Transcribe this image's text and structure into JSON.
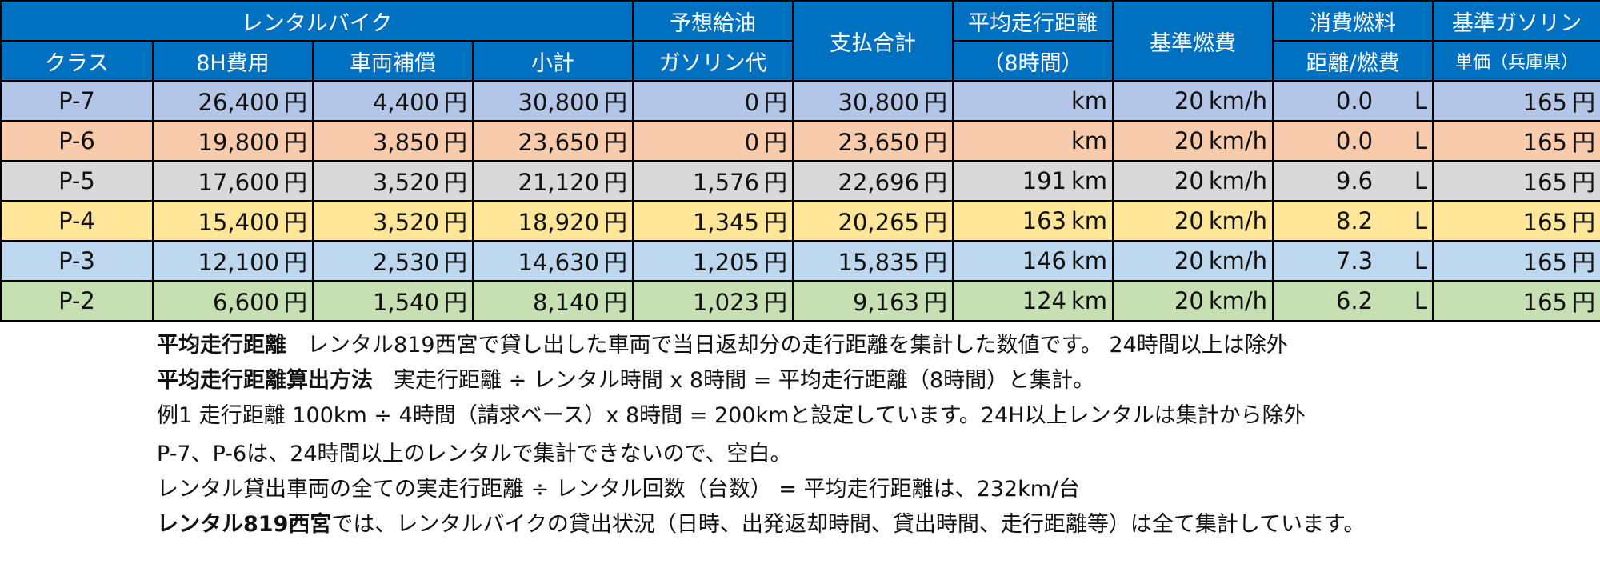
{
  "header": {
    "top": {
      "rental_bike": "レンタルバイク",
      "fuel_forecast": "予想給油",
      "total_payment": "支払合計",
      "avg_distance": "平均走行距離",
      "base_fuel_economy": "基準燃費",
      "fuel_consumed": "消費燃料",
      "base_gas": "基準ガソリン"
    },
    "sub": {
      "class": "クラス",
      "cost_8h": "8H費用",
      "vehicle_comp": "車両補償",
      "subtotal": "小計",
      "gas_cost": "ガソリン代",
      "avg_distance_sub": "（8時間）",
      "distance_per_economy": "距離/燃費",
      "unit_price": "単価（兵庫県）"
    }
  },
  "units": {
    "yen": "円",
    "km": "km",
    "kmh": "km/h",
    "liter": "L"
  },
  "rows": [
    {
      "class": "P-7",
      "cost_8h": "26,400",
      "vehicle_comp": "4,400",
      "subtotal": "30,800",
      "gas_cost": "0",
      "total": "30,800",
      "avg_distance": "",
      "fuel_economy": "20",
      "fuel_consumed": "0.0",
      "gas_price": "165"
    },
    {
      "class": "P-6",
      "cost_8h": "19,800",
      "vehicle_comp": "3,850",
      "subtotal": "23,650",
      "gas_cost": "0",
      "total": "23,650",
      "avg_distance": "",
      "fuel_economy": "20",
      "fuel_consumed": "0.0",
      "gas_price": "165"
    },
    {
      "class": "P-5",
      "cost_8h": "17,600",
      "vehicle_comp": "3,520",
      "subtotal": "21,120",
      "gas_cost": "1,576",
      "total": "22,696",
      "avg_distance": "191",
      "fuel_economy": "20",
      "fuel_consumed": "9.6",
      "gas_price": "165"
    },
    {
      "class": "P-4",
      "cost_8h": "15,400",
      "vehicle_comp": "3,520",
      "subtotal": "18,920",
      "gas_cost": "1,345",
      "total": "20,265",
      "avg_distance": "163",
      "fuel_economy": "20",
      "fuel_consumed": "8.2",
      "gas_price": "165"
    },
    {
      "class": "P-3",
      "cost_8h": "12,100",
      "vehicle_comp": "2,530",
      "subtotal": "14,630",
      "gas_cost": "1,205",
      "total": "15,835",
      "avg_distance": "146",
      "fuel_economy": "20",
      "fuel_consumed": "7.3",
      "gas_price": "165"
    },
    {
      "class": "P-2",
      "cost_8h": "6,600",
      "vehicle_comp": "1,540",
      "subtotal": "8,140",
      "gas_cost": "1,023",
      "total": "9,163",
      "avg_distance": "124",
      "fuel_economy": "20",
      "fuel_consumed": "6.2",
      "gas_price": "165"
    }
  ],
  "notes": {
    "n1_label": "平均走行距離",
    "n1_text": "レンタル819西宮で貸し出した車両で当日返却分の走行距離を集計した数値です。 24時間以上は除外",
    "n2_label": "平均走行距離算出方法",
    "n2_text": "実走行距離 ÷ レンタル時間 x 8時間 = 平均走行距離（8時間）と集計。",
    "n3_text": "例1 走行距離 100km ÷ 4時間（請求ベース）x 8時間 = 200kmと設定しています。24H以上レンタルは集計から除外",
    "n4_text": "P-7、P-6は、24時間以上のレンタルで集計できないので、空白。",
    "n5_text": "レンタル貸出車両の全ての実走行距離 ÷ レンタル回数（台数） = 平均走行距離は、232km/台",
    "n6_label": "レンタル819西宮",
    "n6_text": "では、レンタルバイクの貸出状況（日時、出発返却時間、貸出時間、走行距離等）は全て集計しています。"
  },
  "colors": {
    "header_bg": "#0070c0",
    "row_p7": "#b4c6e7",
    "row_p6": "#f8cbad",
    "row_p5": "#d9d9d9",
    "row_p4": "#ffe699",
    "row_p3": "#bdd7ee",
    "row_p2": "#c6e0b4"
  }
}
